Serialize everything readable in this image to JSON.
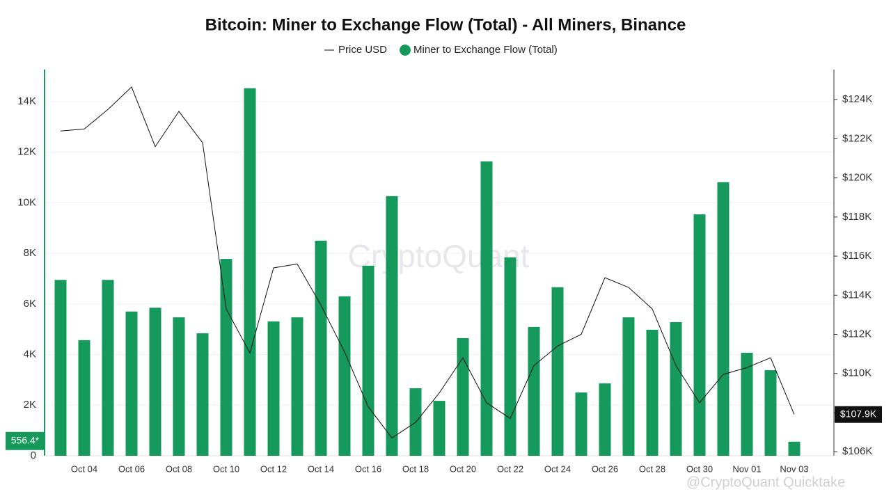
{
  "chart_data": {
    "type": "bar",
    "title": "Bitcoin: Miner to Exchange Flow (Total) - All Miners, Binance",
    "watermark": "CryptoQuant",
    "footer_watermark": "@CryptoQuant Quicktake",
    "categories": [
      null,
      "Oct 04",
      null,
      "Oct 06",
      null,
      "Oct 08",
      null,
      "Oct 10",
      null,
      "Oct 12",
      null,
      "Oct 14",
      null,
      "Oct 16",
      null,
      "Oct 18",
      null,
      "Oct 20",
      null,
      "Oct 22",
      null,
      "Oct 24",
      null,
      "Oct 26",
      null,
      "Oct 28",
      null,
      "Oct 30",
      null,
      "Nov 01",
      null,
      "Nov 03"
    ],
    "series": [
      {
        "name": "Price USD",
        "type": "line",
        "axis": "y2",
        "color": "#111111",
        "values": [
          122400,
          122500,
          123500,
          124650,
          121600,
          123400,
          121800,
          113300,
          111050,
          115400,
          115600,
          113500,
          111100,
          108300,
          106700,
          107500,
          109000,
          110800,
          108500,
          107700,
          110400,
          111400,
          112000,
          114900,
          114400,
          113300,
          110400,
          108500,
          109950,
          110300,
          110800,
          107900
        ],
        "value_labels": [
          null,
          null,
          null,
          null,
          null,
          null,
          null,
          null,
          null,
          null,
          null,
          null,
          null,
          null,
          null,
          null,
          null,
          null,
          null,
          null,
          null,
          null,
          null,
          null,
          null,
          null,
          null,
          null,
          null,
          null,
          null,
          "$107.9K"
        ]
      },
      {
        "name": "Miner to Exchange Flow (Total)",
        "type": "bar",
        "axis": "y",
        "color": "#159a5c",
        "values": [
          6950,
          4570,
          6950,
          5700,
          5850,
          5470,
          4840,
          7780,
          14520,
          5310,
          5470,
          8500,
          6300,
          7510,
          10260,
          2670,
          2170,
          4650,
          11630,
          7840,
          5090,
          6660,
          2500,
          2860,
          5470,
          4980,
          5280,
          9540,
          10810,
          4070,
          3380,
          556.4
        ],
        "value_labels": [
          null,
          null,
          null,
          null,
          null,
          null,
          null,
          null,
          null,
          null,
          null,
          null,
          null,
          null,
          null,
          null,
          null,
          null,
          null,
          null,
          null,
          null,
          null,
          null,
          null,
          null,
          null,
          null,
          null,
          null,
          null,
          "556.4*"
        ]
      }
    ],
    "ylim": [
      0,
      15260
    ],
    "yticks": [
      0,
      {
        "value": 2000,
        "label": "2K"
      },
      {
        "value": 4000,
        "label": "4K"
      },
      {
        "value": 6000,
        "label": "6K"
      },
      {
        "value": 8000,
        "label": "8K"
      },
      {
        "value": 10000,
        "label": "10K"
      },
      {
        "value": 12000,
        "label": "12K"
      },
      {
        "value": 14000,
        "label": "14K"
      }
    ],
    "y2lim": [
      105790,
      125540
    ],
    "y2ticks": [
      {
        "value": 106000,
        "label": "$106K"
      },
      {
        "value": 108000,
        "label": "$108K"
      },
      {
        "value": 110000,
        "label": "$110K"
      },
      {
        "value": 112000,
        "label": "$112K"
      },
      {
        "value": 114000,
        "label": "$114K"
      },
      {
        "value": 116000,
        "label": "$116K"
      },
      {
        "value": 118000,
        "label": "$118K"
      },
      {
        "value": 120000,
        "label": "$120K"
      },
      {
        "value": 122000,
        "label": "$122K"
      },
      {
        "value": 124000,
        "label": "$124K"
      }
    ],
    "grid": true
  }
}
